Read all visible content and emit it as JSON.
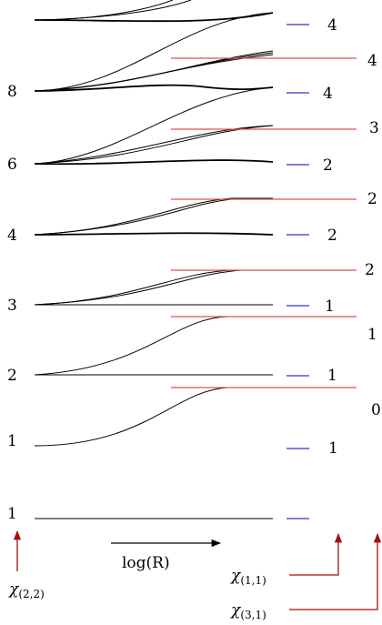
{
  "left_degeneracies": [
    "1",
    "1",
    "2",
    "3",
    "4",
    "6",
    "8"
  ],
  "right_levels": [
    "4",
    "4",
    "4",
    "3",
    "2",
    "2",
    "2",
    "2",
    "1",
    "1",
    "1",
    "0",
    "1"
  ],
  "xaxis_label": "log(R)",
  "chi_labels": {
    "chi22": {
      "main": "χ",
      "sub": "(2,2)"
    },
    "chi11": {
      "main": "χ",
      "sub": "(1,1)"
    },
    "chi31": {
      "main": "χ",
      "sub": "(3,1)"
    }
  },
  "colors": {
    "curve": "#000000",
    "red_level": "#e05050",
    "blue_level": "#3030d0",
    "arrow": "#a01010"
  }
}
